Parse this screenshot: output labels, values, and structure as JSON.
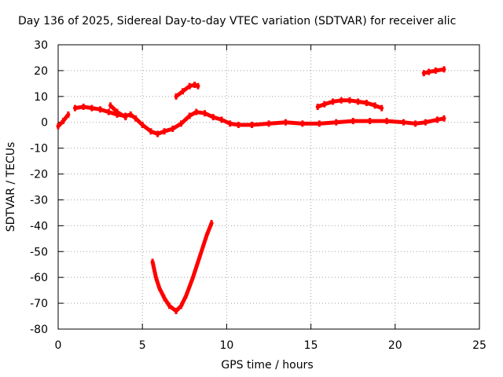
{
  "chart_data": {
    "type": "scatter",
    "title": "Day 136 of 2025, Sidereal Day-to-day VTEC variation (SDTVAR) for receiver alic",
    "xlabel": "GPS time / hours",
    "ylabel": "SDTVAR / TECUs",
    "xlim": [
      0,
      25
    ],
    "ylim": [
      -80,
      30
    ],
    "xticks": [
      0,
      5,
      10,
      15,
      20,
      25
    ],
    "yticks": [
      -80,
      -70,
      -60,
      -50,
      -40,
      -30,
      -20,
      -10,
      0,
      10,
      20,
      30
    ],
    "grid": true,
    "legend": "none",
    "series": [
      {
        "color": "#ff0000",
        "segments": [
          [
            [
              0.0,
              -1.5
            ],
            [
              0.3,
              0.5
            ],
            [
              0.6,
              3.0
            ]
          ],
          [
            [
              1.0,
              5.5
            ],
            [
              1.5,
              6.0
            ],
            [
              2.0,
              5.5
            ],
            [
              2.5,
              5.0
            ],
            [
              3.0,
              4.0
            ],
            [
              3.5,
              3.0
            ],
            [
              4.0,
              2.5
            ],
            [
              4.3,
              3.0
            ],
            [
              4.6,
              1.5
            ],
            [
              5.0,
              -1.0
            ],
            [
              5.5,
              -3.5
            ],
            [
              5.9,
              -4.5
            ],
            [
              6.3,
              -3.5
            ],
            [
              6.8,
              -2.5
            ],
            [
              7.3,
              -0.5
            ],
            [
              7.8,
              2.5
            ],
            [
              8.2,
              4.0
            ],
            [
              8.7,
              3.5
            ],
            [
              9.2,
              2.0
            ],
            [
              9.7,
              1.0
            ],
            [
              10.2,
              -0.5
            ],
            [
              10.7,
              -1.0
            ],
            [
              11.5,
              -1.0
            ],
            [
              12.5,
              -0.5
            ],
            [
              13.5,
              0.0
            ],
            [
              14.5,
              -0.5
            ],
            [
              15.5,
              -0.5
            ],
            [
              16.5,
              0.0
            ],
            [
              17.5,
              0.5
            ],
            [
              18.5,
              0.5
            ],
            [
              19.5,
              0.5
            ],
            [
              20.5,
              0.0
            ],
            [
              21.2,
              -0.5
            ],
            [
              21.8,
              0.0
            ],
            [
              22.5,
              1.0
            ],
            [
              22.9,
              1.5
            ]
          ],
          [
            [
              3.1,
              6.5
            ],
            [
              3.5,
              4.0
            ],
            [
              4.0,
              2.0
            ]
          ],
          [
            [
              7.0,
              10.0
            ],
            [
              7.4,
              12.0
            ],
            [
              7.8,
              14.0
            ],
            [
              8.1,
              14.5
            ],
            [
              8.3,
              14.0
            ]
          ],
          [
            [
              15.4,
              6.0
            ],
            [
              15.8,
              7.0
            ],
            [
              16.3,
              8.0
            ],
            [
              16.8,
              8.5
            ],
            [
              17.3,
              8.5
            ],
            [
              17.8,
              8.0
            ],
            [
              18.3,
              7.5
            ],
            [
              18.8,
              6.5
            ],
            [
              19.2,
              5.5
            ]
          ],
          [
            [
              21.7,
              19.0
            ],
            [
              22.0,
              19.5
            ],
            [
              22.4,
              20.0
            ],
            [
              22.9,
              20.5
            ]
          ],
          [
            [
              5.6,
              -54
            ],
            [
              5.8,
              -60
            ],
            [
              6.0,
              -64
            ],
            [
              6.3,
              -68
            ],
            [
              6.6,
              -71
            ],
            [
              7.0,
              -73
            ],
            [
              7.3,
              -71
            ],
            [
              7.6,
              -67
            ],
            [
              8.0,
              -60
            ],
            [
              8.4,
              -52
            ],
            [
              8.8,
              -44
            ],
            [
              9.1,
              -39
            ]
          ]
        ]
      }
    ]
  }
}
